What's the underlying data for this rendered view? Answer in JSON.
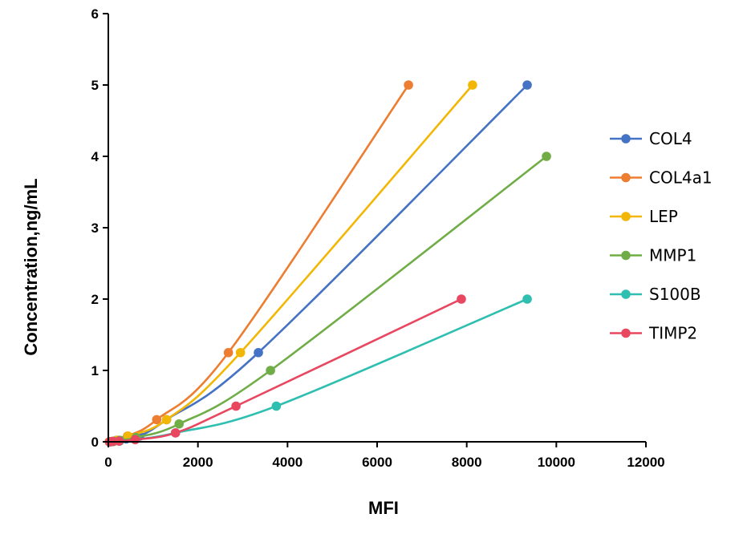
{
  "chart_data": {
    "type": "line",
    "title": "",
    "xlabel": "MFI",
    "ylabel": "Concentration,ng/mL",
    "xlim": [
      0,
      12000
    ],
    "ylim": [
      0,
      6
    ],
    "xticks": [
      0,
      2000,
      4000,
      6000,
      8000,
      10000,
      12000
    ],
    "yticks": [
      0,
      1,
      2,
      3,
      4,
      5,
      6
    ],
    "grid": false,
    "legend_position": "right",
    "series": [
      {
        "name": "COL4",
        "color": "#4472C4",
        "x": [
          40,
          100,
          220,
          400,
          700,
          1300,
          3350,
          9350
        ],
        "y": [
          0,
          0.005,
          0.02,
          0.04,
          0.08,
          0.31,
          1.25,
          5
        ]
      },
      {
        "name": "COL4a1",
        "color": "#ED7D31",
        "x": [
          20,
          80,
          180,
          430,
          1080,
          2680,
          6700
        ],
        "y": [
          0,
          0.005,
          0.02,
          0.08,
          0.31,
          1.25,
          5
        ]
      },
      {
        "name": "LEP",
        "color": "#F2B705",
        "x": [
          30,
          90,
          200,
          440,
          1300,
          2950,
          8130
        ],
        "y": [
          0,
          0.005,
          0.02,
          0.08,
          0.31,
          1.25,
          5
        ]
      },
      {
        "name": "MMP1",
        "color": "#70AD47",
        "x": [
          50,
          120,
          260,
          620,
          1580,
          3620,
          9780
        ],
        "y": [
          0,
          0.005,
          0.02,
          0.06,
          0.25,
          1,
          4
        ]
      },
      {
        "name": "S100B",
        "color": "#2EBFB0",
        "x": [
          40,
          110,
          250,
          600,
          1500,
          3750,
          9350
        ],
        "y": [
          0,
          0.005,
          0.01,
          0.03,
          0.125,
          0.5,
          2
        ]
      },
      {
        "name": "TIMP2",
        "color": "#E8475F",
        "x": [
          30,
          100,
          240,
          600,
          1500,
          2850,
          7880
        ],
        "y": [
          0,
          0.005,
          0.01,
          0.03,
          0.125,
          0.5,
          2
        ]
      }
    ]
  }
}
